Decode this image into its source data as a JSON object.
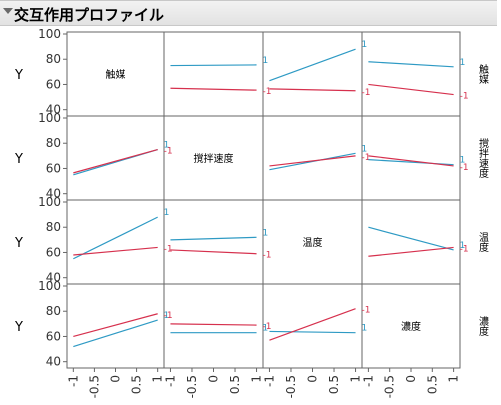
{
  "header": {
    "title": "交互作用プロファイル",
    "toggle_icon": "disclosure-triangle-icon"
  },
  "colors": {
    "level_plus": "#2e9ac4",
    "level_minus": "#d6304d",
    "frame": "#666666",
    "tick_text": "#333333"
  },
  "chart_data": {
    "type": "line",
    "y_label": "Y",
    "ylim": [
      35,
      100
    ],
    "y_ticks": [
      40,
      60,
      80,
      100
    ],
    "xlim": [
      -1.15,
      1.15
    ],
    "x_ticks": [
      -1,
      -0.5,
      0,
      0.5,
      1
    ],
    "factors": [
      "触媒",
      "撹拌速度",
      "温度",
      "濃度"
    ],
    "legend_levels": [
      "1",
      "-1"
    ],
    "panels": [
      {
        "row": 0,
        "col": 1,
        "series": [
          {
            "level": "1",
            "y": [
              75,
              75.5
            ]
          },
          {
            "level": "-1",
            "y": [
              57,
              55.5
            ]
          }
        ]
      },
      {
        "row": 0,
        "col": 2,
        "series": [
          {
            "level": "1",
            "y": [
              63,
              88
            ]
          },
          {
            "level": "-1",
            "y": [
              56.5,
              55
            ]
          }
        ]
      },
      {
        "row": 0,
        "col": 3,
        "series": [
          {
            "level": "1",
            "y": [
              78,
              74
            ]
          },
          {
            "level": "-1",
            "y": [
              60,
              52
            ]
          }
        ]
      },
      {
        "row": 1,
        "col": 0,
        "series": [
          {
            "level": "1",
            "y": [
              55,
              75
            ]
          },
          {
            "level": "-1",
            "y": [
              56.5,
              75
            ]
          }
        ]
      },
      {
        "row": 1,
        "col": 2,
        "series": [
          {
            "level": "1",
            "y": [
              59,
              72
            ]
          },
          {
            "level": "-1",
            "y": [
              62,
              70
            ]
          }
        ]
      },
      {
        "row": 1,
        "col": 3,
        "series": [
          {
            "level": "1",
            "y": [
              67,
              63
            ]
          },
          {
            "level": "-1",
            "y": [
              70,
              62
            ]
          }
        ]
      },
      {
        "row": 2,
        "col": 0,
        "series": [
          {
            "level": "1",
            "y": [
              55,
              88
            ]
          },
          {
            "level": "-1",
            "y": [
              58,
              64
            ]
          }
        ]
      },
      {
        "row": 2,
        "col": 1,
        "series": [
          {
            "level": "1",
            "y": [
              70,
              72
            ]
          },
          {
            "level": "-1",
            "y": [
              62,
              59
            ]
          }
        ]
      },
      {
        "row": 2,
        "col": 3,
        "series": [
          {
            "level": "1",
            "y": [
              80,
              62
            ]
          },
          {
            "level": "-1",
            "y": [
              57,
              64
            ]
          }
        ]
      },
      {
        "row": 3,
        "col": 0,
        "series": [
          {
            "level": "1",
            "y": [
              52,
              73
            ]
          },
          {
            "level": "-1",
            "y": [
              60,
              78
            ]
          }
        ]
      },
      {
        "row": 3,
        "col": 1,
        "series": [
          {
            "level": "1",
            "y": [
              63,
              63
            ]
          },
          {
            "level": "-1",
            "y": [
              70,
              69
            ]
          }
        ]
      },
      {
        "row": 3,
        "col": 2,
        "series": [
          {
            "level": "1",
            "y": [
              64,
              63
            ]
          },
          {
            "level": "-1",
            "y": [
              57,
              82
            ]
          }
        ]
      }
    ]
  }
}
